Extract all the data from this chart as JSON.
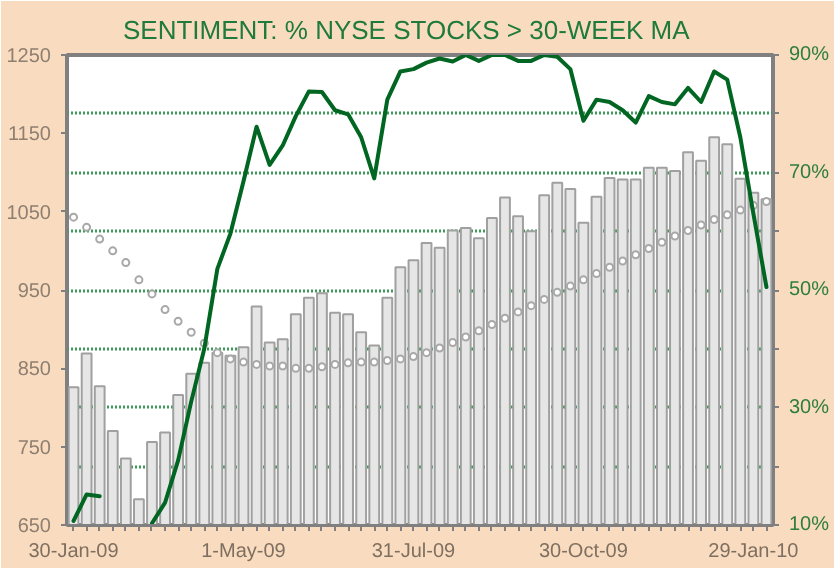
{
  "chart_data": {
    "type": "bar",
    "title": "SENTIMENT: % NYSE STOCKS > 30-WEEK MA",
    "categories": [
      "30-Jan-09",
      null,
      null,
      null,
      null,
      null,
      null,
      null,
      null,
      null,
      null,
      null,
      null,
      "1-May-09",
      null,
      null,
      null,
      null,
      null,
      null,
      null,
      null,
      null,
      null,
      null,
      null,
      "31-Jul-09",
      null,
      null,
      null,
      null,
      null,
      null,
      null,
      null,
      null,
      null,
      null,
      null,
      "30-Oct-09",
      null,
      null,
      null,
      null,
      null,
      null,
      null,
      null,
      null,
      null,
      null,
      null,
      "29-Jan-10",
      null
    ],
    "series": [
      {
        "color": "#e6e6e6",
        "values": [
          826,
          869,
          827,
          770,
          735,
          683,
          756,
          768,
          816,
          843,
          857,
          870,
          866,
          877,
          929,
          883,
          887,
          919,
          940,
          946,
          921,
          919,
          896,
          879,
          940,
          979,
          988,
          1010,
          1004,
          1026,
          1029,
          1016,
          1042,
          1068,
          1044,
          1025,
          1071,
          1087,
          1079,
          1036,
          1069,
          1093,
          1091,
          1091,
          1106,
          1106,
          1102,
          1126,
          1115,
          1145,
          1136,
          1092,
          1074,
          1066
        ]
      },
      {
        "type": "scatter",
        "marker": "circle",
        "color": "#a8a8a8",
        "values": [
          1043,
          1030,
          1015,
          1000,
          985,
          963,
          945,
          925,
          910,
          896,
          882,
          870,
          862,
          858,
          855,
          853,
          853,
          850,
          850,
          852,
          855,
          857,
          858,
          858,
          860,
          862,
          865,
          870,
          876,
          883,
          890,
          898,
          906,
          914,
          922,
          930,
          938,
          947,
          955,
          963,
          971,
          979,
          987,
          995,
          1003,
          1011,
          1019,
          1026,
          1033,
          1040,
          1046,
          1052,
          1058,
          1063
        ]
      },
      {
        "type": "line",
        "axis": "y2",
        "color": "#006622",
        "values": [
          10.7,
          15.2,
          14.9,
          null,
          null,
          null,
          10.3,
          13.8,
          21,
          31,
          40,
          53.6,
          59.6,
          68.5,
          77.8,
          71.3,
          74.6,
          79.6,
          83.8,
          83.7,
          80.6,
          79.9,
          76,
          69,
          82.4,
          87.2,
          87.6,
          88.7,
          89.4,
          88.9,
          90,
          89,
          90,
          90,
          89,
          89,
          90,
          89.7,
          87.6,
          78.8,
          82.4,
          82,
          80.6,
          78.5,
          83,
          82,
          81.6,
          84.4,
          82,
          87.2,
          85.8,
          76,
          63,
          50.5
        ]
      }
    ],
    "ylim": [
      650,
      1250
    ],
    "yticks": [
      650,
      750,
      850,
      950,
      1050,
      1150,
      1250
    ],
    "y2lim": [
      10,
      90
    ],
    "y2ticks": [
      {
        "value": 10,
        "label": "10%"
      },
      {
        "value": 20,
        "label": null
      },
      {
        "value": 30,
        "label": "30%"
      },
      {
        "value": 40,
        "label": null
      },
      {
        "value": 50,
        "label": "50%"
      },
      {
        "value": 60,
        "label": null
      },
      {
        "value": 70,
        "label": "70%"
      },
      {
        "value": 80,
        "label": null
      },
      {
        "value": 90,
        "label": "90%"
      }
    ],
    "grid": "y2"
  }
}
